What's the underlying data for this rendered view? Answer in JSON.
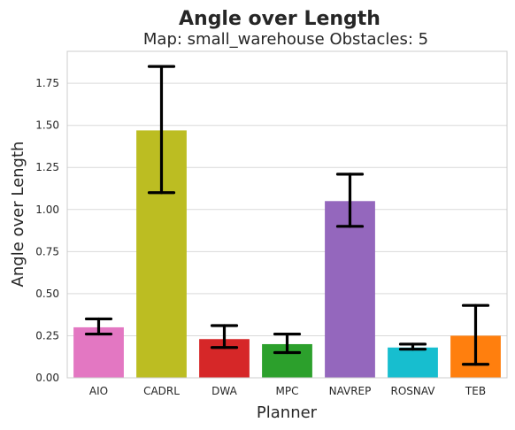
{
  "chart_data": {
    "type": "bar",
    "title": "Angle over Length",
    "subtitle": "Map: small_warehouse Obstacles: 5",
    "xlabel": "Planner",
    "ylabel": "Angle over Length",
    "ylim": [
      0,
      1.94
    ],
    "yticks": [
      "0.00",
      "0.25",
      "0.50",
      "0.75",
      "1.00",
      "1.25",
      "1.50",
      "1.75"
    ],
    "grid": true,
    "categories": [
      "AIO",
      "CADRL",
      "DWA",
      "MPC",
      "NAVREP",
      "ROSNAV",
      "TEB"
    ],
    "values": [
      0.3,
      1.47,
      0.23,
      0.2,
      1.05,
      0.18,
      0.25
    ],
    "err_low": [
      0.26,
      1.1,
      0.18,
      0.15,
      0.9,
      0.17,
      0.08
    ],
    "err_high": [
      0.35,
      1.85,
      0.31,
      0.26,
      1.21,
      0.2,
      0.43
    ],
    "colors": [
      "#e377c2",
      "#bcbd22",
      "#d62728",
      "#2ca02c",
      "#9467bd",
      "#17becf",
      "#ff7f0e"
    ]
  }
}
